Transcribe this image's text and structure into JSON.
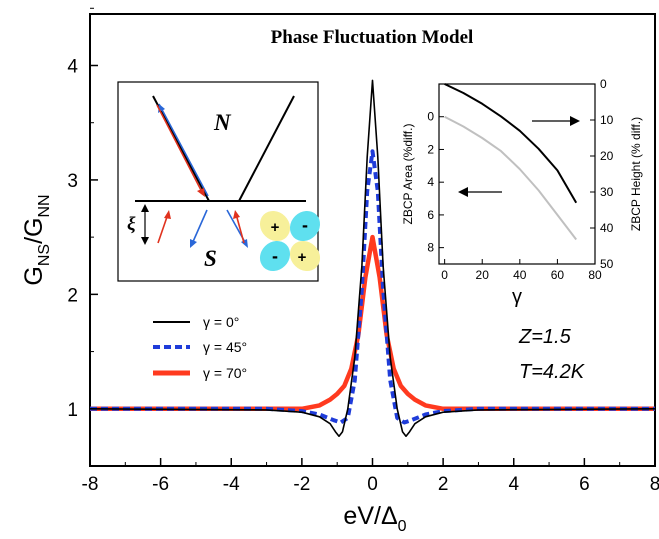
{
  "chart_data": [
    {
      "type": "line",
      "title": "Phase Fluctuation Model",
      "xlabel": "eV/Δ",
      "xlabel_sub": "0",
      "ylabel": "G",
      "ylabel_sub_num": "NS",
      "ylabel_mid": "/G",
      "ylabel_sub_den": "NN",
      "xlim": [
        -8,
        8
      ],
      "ylim": [
        0.5,
        4.45
      ],
      "x_ticks": [
        -8,
        -6,
        -4,
        -2,
        0,
        2,
        4,
        6,
        8
      ],
      "y_ticks": [
        1,
        2,
        3,
        4
      ],
      "grid": false,
      "legend_position": "left-middle",
      "annotations": [
        "Z=1.5",
        "T=4.2K"
      ],
      "series": [
        {
          "name": "γ = 0°",
          "color": "#000000",
          "style": "solid",
          "x": [
            -8,
            -3,
            -2,
            -1.5,
            -1.2,
            -1.05,
            -0.95,
            -0.85,
            -0.7,
            -0.5,
            -0.3,
            -0.15,
            0,
            0.15,
            0.3,
            0.5,
            0.7,
            0.85,
            0.95,
            1.05,
            1.2,
            1.5,
            2,
            3,
            8
          ],
          "y": [
            1.0,
            0.99,
            0.97,
            0.93,
            0.87,
            0.8,
            0.76,
            0.8,
            1.0,
            1.45,
            2.25,
            3.2,
            3.87,
            3.2,
            2.25,
            1.45,
            1.0,
            0.8,
            0.76,
            0.8,
            0.87,
            0.93,
            0.97,
            0.99,
            1.0
          ]
        },
        {
          "name": "γ = 45°",
          "color": "#1f3cd9",
          "style": "dashed",
          "x": [
            -8,
            -3,
            -2,
            -1.5,
            -1.1,
            -0.9,
            -0.7,
            -0.5,
            -0.3,
            -0.15,
            0,
            0.15,
            0.3,
            0.5,
            0.7,
            0.9,
            1.1,
            1.5,
            2,
            3,
            8
          ],
          "y": [
            1.0,
            1.0,
            0.98,
            0.95,
            0.9,
            0.88,
            0.92,
            1.25,
            2.05,
            2.9,
            3.25,
            2.9,
            2.05,
            1.25,
            0.92,
            0.88,
            0.9,
            0.95,
            0.98,
            1.0,
            1.0
          ]
        },
        {
          "name": "γ = 70°",
          "color": "#ff3a1f",
          "style": "solid",
          "x": [
            -8,
            -3,
            -2,
            -1.5,
            -1.2,
            -1.0,
            -0.8,
            -0.6,
            -0.4,
            -0.2,
            0,
            0.2,
            0.4,
            0.6,
            0.8,
            1.0,
            1.2,
            1.5,
            2,
            3,
            8
          ],
          "y": [
            1.0,
            1.0,
            1.0,
            1.03,
            1.08,
            1.13,
            1.2,
            1.35,
            1.65,
            2.15,
            2.5,
            2.15,
            1.65,
            1.35,
            1.2,
            1.13,
            1.08,
            1.03,
            1.0,
            1.0,
            1.0
          ]
        }
      ]
    },
    {
      "type": "line",
      "xlabel": "γ",
      "ylabel_left": "ZBCP Area (%diff.)",
      "ylabel_right": "ZBCP Height (% diff.)",
      "xlim": [
        -3,
        80
      ],
      "ylim_left": [
        -2,
        9
      ],
      "ylim_right": [
        0,
        50
      ],
      "left_axis_inverted": true,
      "right_axis_inverted": true,
      "x_ticks": [
        0,
        20,
        40,
        60,
        80
      ],
      "y_ticks_left": [
        0,
        2,
        4,
        6,
        8
      ],
      "y_ticks_right": [
        0,
        10,
        20,
        30,
        40,
        50
      ],
      "series": [
        {
          "axis": "right",
          "color": "#000000",
          "x": [
            0,
            10,
            20,
            30,
            40,
            50,
            60,
            70
          ],
          "y": [
            0,
            2.5,
            5.5,
            9,
            13,
            18,
            24,
            33
          ]
        },
        {
          "axis": "left",
          "color": "#c0c0c0",
          "x": [
            0,
            10,
            20,
            30,
            40,
            50,
            60,
            70
          ],
          "y": [
            0,
            0.6,
            1.3,
            2.1,
            3.2,
            4.5,
            6.0,
            7.5
          ]
        }
      ]
    }
  ],
  "diagram": {
    "normal_label": "N",
    "super_label": "S",
    "xi_label": "ξ",
    "lobe_signs": [
      "+",
      "-",
      "-",
      "+"
    ]
  }
}
